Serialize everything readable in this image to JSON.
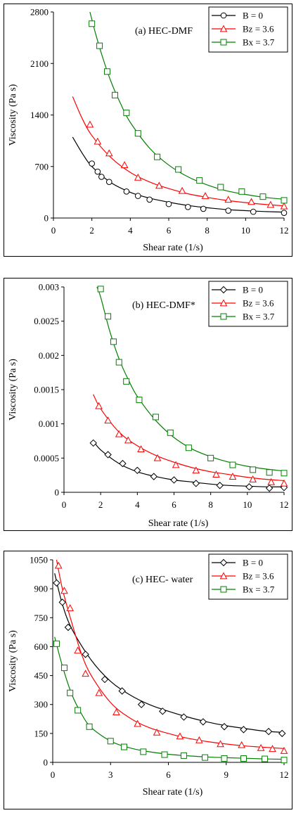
{
  "chart_data": [
    {
      "type": "scatter",
      "title": "(a) HEC-DMF",
      "xlabel": "Shear rate (1/s)",
      "ylabel": "Viscosity (Pa s)",
      "xlim": [
        0,
        12
      ],
      "ylim": [
        0,
        2800
      ],
      "xticks": [
        "0",
        "2",
        "4",
        "6",
        "8",
        "10",
        "12"
      ],
      "yticks": [
        "0",
        "700",
        "1400",
        "2100",
        "2800"
      ],
      "legend_position": "top-right",
      "series": [
        {
          "name": "B = 0",
          "color": "#000000",
          "marker": "circle",
          "points": [
            [
              2.0,
              740
            ],
            [
              2.3,
              630
            ],
            [
              2.5,
              560
            ],
            [
              2.9,
              490
            ],
            [
              3.8,
              360
            ],
            [
              4.4,
              300
            ],
            [
              5.0,
              250
            ],
            [
              6.0,
              190
            ],
            [
              7.0,
              150
            ],
            [
              7.8,
              125
            ],
            [
              9.1,
              100
            ],
            [
              10.4,
              85
            ],
            [
              12.0,
              70
            ]
          ],
          "fit": [
            [
              1.0,
              1100
            ],
            [
              1.5,
              880
            ],
            [
              2.0,
              700
            ],
            [
              3.0,
              480
            ],
            [
              4.0,
              350
            ],
            [
              5.0,
              270
            ],
            [
              6.0,
              215
            ],
            [
              7.0,
              170
            ],
            [
              8.0,
              140
            ],
            [
              9.0,
              115
            ],
            [
              10.0,
              100
            ],
            [
              11.0,
              88
            ],
            [
              12.0,
              80
            ]
          ]
        },
        {
          "name": "Bz = 3.6",
          "color": "#ff0000",
          "marker": "triangle",
          "points": [
            [
              1.9,
              1270
            ],
            [
              2.3,
              1040
            ],
            [
              2.9,
              880
            ],
            [
              3.7,
              720
            ],
            [
              4.4,
              550
            ],
            [
              5.5,
              440
            ],
            [
              6.7,
              370
            ],
            [
              7.9,
              300
            ],
            [
              9.1,
              250
            ],
            [
              10.3,
              220
            ],
            [
              11.3,
              180
            ],
            [
              12.0,
              160
            ]
          ],
          "fit": [
            [
              1.0,
              1650
            ],
            [
              1.5,
              1350
            ],
            [
              2.0,
              1120
            ],
            [
              3.0,
              820
            ],
            [
              4.0,
              620
            ],
            [
              5.0,
              490
            ],
            [
              6.0,
              400
            ],
            [
              7.0,
              330
            ],
            [
              8.0,
              280
            ],
            [
              9.0,
              240
            ],
            [
              10.0,
              210
            ],
            [
              11.0,
              185
            ],
            [
              12.0,
              165
            ]
          ]
        },
        {
          "name": "Bx = 3.7",
          "color": "#008000",
          "marker": "square",
          "points": [
            [
              2.0,
              2640
            ],
            [
              2.4,
              2340
            ],
            [
              2.8,
              1990
            ],
            [
              3.2,
              1670
            ],
            [
              3.8,
              1430
            ],
            [
              4.4,
              1150
            ],
            [
              5.4,
              830
            ],
            [
              6.5,
              660
            ],
            [
              7.6,
              510
            ],
            [
              8.7,
              420
            ],
            [
              9.8,
              360
            ],
            [
              10.9,
              290
            ],
            [
              12.0,
              240
            ]
          ],
          "fit": [
            [
              1.9,
              2800
            ],
            [
              2.2,
              2500
            ],
            [
              2.6,
              2150
            ],
            [
              3.0,
              1850
            ],
            [
              3.5,
              1550
            ],
            [
              4.0,
              1300
            ],
            [
              5.0,
              950
            ],
            [
              6.0,
              720
            ],
            [
              7.0,
              560
            ],
            [
              8.0,
              450
            ],
            [
              9.0,
              370
            ],
            [
              10.0,
              320
            ],
            [
              11.0,
              280
            ],
            [
              12.0,
              255
            ]
          ]
        }
      ]
    },
    {
      "type": "scatter",
      "title": "(b) HEC-DMF*",
      "xlabel": "Shear rate (1/s)",
      "ylabel": "Viscosity (Pa s)",
      "xlim": [
        0,
        12
      ],
      "ylim": [
        0,
        0.003
      ],
      "xticks": [
        "0",
        "2",
        "4",
        "6",
        "8",
        "10",
        "12"
      ],
      "yticks": [
        "0",
        "0.0005",
        "0.001",
        "0.0015",
        "0.002",
        "0.0025",
        "0.003"
      ],
      "legend_position": "top-right",
      "series": [
        {
          "name": "B = 0",
          "color": "#000000",
          "marker": "diamond",
          "points": [
            [
              1.6,
              0.00072
            ],
            [
              2.4,
              0.00055
            ],
            [
              3.2,
              0.00042
            ],
            [
              4.0,
              0.00032
            ],
            [
              4.9,
              0.00023
            ],
            [
              6.0,
              0.00018
            ],
            [
              7.2,
              0.00013
            ],
            [
              8.5,
              0.0001
            ],
            [
              10.1,
              8e-05
            ],
            [
              11.2,
              6e-05
            ],
            [
              12.0,
              7e-05
            ]
          ],
          "fit": [
            [
              1.6,
              0.00075
            ],
            [
              2.0,
              0.00062
            ],
            [
              3.0,
              0.00042
            ],
            [
              4.0,
              0.0003
            ],
            [
              5.0,
              0.00023
            ],
            [
              6.0,
              0.00018
            ],
            [
              7.0,
              0.00015
            ],
            [
              8.0,
              0.00012
            ],
            [
              9.0,
              0.0001
            ],
            [
              10.0,
              9e-05
            ],
            [
              11.0,
              8e-05
            ],
            [
              12.0,
              8e-05
            ]
          ]
        },
        {
          "name": "Bz = 3.6",
          "color": "#ff0000",
          "marker": "triangle",
          "points": [
            [
              1.9,
              0.00126
            ],
            [
              2.4,
              0.00105
            ],
            [
              3.0,
              0.00085
            ],
            [
              3.5,
              0.00076
            ],
            [
              4.2,
              0.00063
            ],
            [
              5.1,
              0.0005
            ],
            [
              6.1,
              0.0004
            ],
            [
              7.2,
              0.00032
            ],
            [
              8.3,
              0.00026
            ],
            [
              9.2,
              0.00023
            ],
            [
              10.3,
              0.00019
            ],
            [
              11.3,
              0.00015
            ],
            [
              12.0,
              0.00013
            ]
          ],
          "fit": [
            [
              1.6,
              0.00143
            ],
            [
              2.0,
              0.00122
            ],
            [
              3.0,
              0.00088
            ],
            [
              4.0,
              0.00068
            ],
            [
              5.0,
              0.00054
            ],
            [
              6.0,
              0.00044
            ],
            [
              7.0,
              0.00036
            ],
            [
              8.0,
              0.0003
            ],
            [
              9.0,
              0.00026
            ],
            [
              10.0,
              0.00022
            ],
            [
              11.0,
              0.00019
            ],
            [
              12.0,
              0.00017
            ]
          ]
        },
        {
          "name": "Bx = 3.7",
          "color": "#008000",
          "marker": "square",
          "points": [
            [
              2.0,
              0.00297
            ],
            [
              2.4,
              0.00257
            ],
            [
              2.7,
              0.0022
            ],
            [
              3.0,
              0.0019
            ],
            [
              3.4,
              0.00162
            ],
            [
              4.1,
              0.00135
            ],
            [
              5.0,
              0.0011
            ],
            [
              5.8,
              0.00087
            ],
            [
              6.8,
              0.00065
            ],
            [
              8.0,
              0.0005
            ],
            [
              9.2,
              0.0004
            ],
            [
              10.3,
              0.00033
            ],
            [
              11.2,
              0.00029
            ],
            [
              12.0,
              0.00028
            ]
          ],
          "fit": [
            [
              1.8,
              0.003
            ],
            [
              2.0,
              0.00285
            ],
            [
              2.5,
              0.00235
            ],
            [
              3.0,
              0.00195
            ],
            [
              3.5,
              0.00165
            ],
            [
              4.0,
              0.0014
            ],
            [
              5.0,
              0.00105
            ],
            [
              6.0,
              0.0008
            ],
            [
              7.0,
              0.00063
            ],
            [
              8.0,
              0.00052
            ],
            [
              9.0,
              0.00044
            ],
            [
              10.0,
              0.00038
            ],
            [
              11.0,
              0.00034
            ],
            [
              12.0,
              0.00031
            ]
          ]
        }
      ]
    },
    {
      "type": "scatter",
      "title": "(c) HEC- water",
      "xlabel": "Shear rate (1/s)",
      "ylabel": "Viscosity (Pa s)",
      "xlim": [
        0,
        12
      ],
      "ylim": [
        0,
        1050
      ],
      "xticks": [
        "0",
        "3",
        "6",
        "9",
        "12"
      ],
      "yticks": [
        "0",
        "150",
        "300",
        "450",
        "600",
        "750",
        "900",
        "1050"
      ],
      "legend_position": "top-right",
      "series": [
        {
          "name": "B = 0",
          "color": "#000000",
          "marker": "diamond",
          "points": [
            [
              0.2,
              930
            ],
            [
              0.5,
              830
            ],
            [
              0.8,
              700
            ],
            [
              1.7,
              560
            ],
            [
              2.7,
              430
            ],
            [
              3.6,
              370
            ],
            [
              4.6,
              300
            ],
            [
              5.7,
              265
            ],
            [
              6.8,
              235
            ],
            [
              7.8,
              210
            ],
            [
              8.9,
              185
            ],
            [
              9.9,
              170
            ],
            [
              11.2,
              160
            ],
            [
              11.9,
              150
            ]
          ],
          "fit": [
            [
              0.1,
              980
            ],
            [
              0.5,
              820
            ],
            [
              1.0,
              690
            ],
            [
              2.0,
              530
            ],
            [
              3.0,
              420
            ],
            [
              4.0,
              350
            ],
            [
              5.0,
              300
            ],
            [
              6.0,
              265
            ],
            [
              7.0,
              235
            ],
            [
              8.0,
              210
            ],
            [
              9.0,
              190
            ],
            [
              10.0,
              175
            ],
            [
              11.0,
              162
            ],
            [
              12.0,
              155
            ]
          ]
        },
        {
          "name": "Bz = 3.6",
          "color": "#ff0000",
          "marker": "triangle",
          "points": [
            [
              0.3,
              1020
            ],
            [
              0.6,
              890
            ],
            [
              0.9,
              800
            ],
            [
              1.3,
              580
            ],
            [
              1.7,
              460
            ],
            [
              2.4,
              360
            ],
            [
              3.3,
              260
            ],
            [
              4.4,
              200
            ],
            [
              5.4,
              155
            ],
            [
              6.6,
              135
            ],
            [
              7.6,
              115
            ],
            [
              8.7,
              95
            ],
            [
              9.8,
              90
            ],
            [
              10.8,
              75
            ],
            [
              11.4,
              70
            ],
            [
              12.0,
              60
            ]
          ],
          "fit": [
            [
              0.2,
              1050
            ],
            [
              0.5,
              900
            ],
            [
              1.0,
              720
            ],
            [
              1.5,
              560
            ],
            [
              2.0,
              450
            ],
            [
              3.0,
              310
            ],
            [
              4.0,
              230
            ],
            [
              5.0,
              180
            ],
            [
              6.0,
              150
            ],
            [
              7.0,
              125
            ],
            [
              8.0,
              108
            ],
            [
              9.0,
              95
            ],
            [
              10.0,
              85
            ],
            [
              11.0,
              78
            ],
            [
              12.0,
              72
            ]
          ]
        },
        {
          "name": "Bx = 3.7",
          "color": "#008000",
          "marker": "square",
          "points": [
            [
              0.2,
              615
            ],
            [
              0.6,
              490
            ],
            [
              0.9,
              360
            ],
            [
              1.3,
              270
            ],
            [
              1.9,
              185
            ],
            [
              3.0,
              110
            ],
            [
              3.7,
              80
            ],
            [
              4.7,
              55
            ],
            [
              5.8,
              40
            ],
            [
              6.8,
              35
            ],
            [
              7.9,
              25
            ],
            [
              8.9,
              20
            ],
            [
              9.9,
              20
            ],
            [
              11.0,
              18
            ],
            [
              12.0,
              12
            ]
          ],
          "fit": [
            [
              0.1,
              650
            ],
            [
              0.5,
              500
            ],
            [
              1.0,
              350
            ],
            [
              1.5,
              250
            ],
            [
              2.0,
              180
            ],
            [
              3.0,
              110
            ],
            [
              4.0,
              75
            ],
            [
              5.0,
              55
            ],
            [
              6.0,
              42
            ],
            [
              7.0,
              34
            ],
            [
              8.0,
              28
            ],
            [
              9.0,
              24
            ],
            [
              10.0,
              21
            ],
            [
              11.0,
              18
            ],
            [
              12.0,
              16
            ]
          ]
        }
      ]
    }
  ]
}
